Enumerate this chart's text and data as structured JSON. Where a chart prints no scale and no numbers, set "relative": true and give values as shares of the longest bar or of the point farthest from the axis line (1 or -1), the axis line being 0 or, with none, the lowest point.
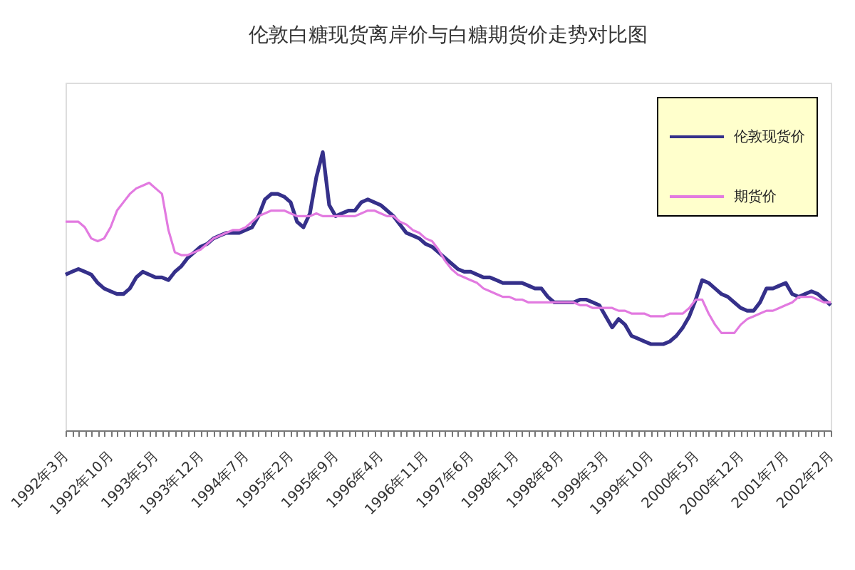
{
  "chart_data": {
    "type": "line",
    "title": "伦敦白糖现货离岸价与白糖期货价走势对比图",
    "relative": true,
    "legend": "top right",
    "categories": [
      "1992年3月",
      null,
      null,
      null,
      null,
      null,
      null,
      "1992年10月",
      null,
      null,
      null,
      null,
      null,
      null,
      "1993年5月",
      null,
      null,
      null,
      null,
      null,
      null,
      "1993年12月",
      null,
      null,
      null,
      null,
      null,
      null,
      "1994年7月",
      null,
      null,
      null,
      null,
      null,
      null,
      "1995年2月",
      null,
      null,
      null,
      null,
      null,
      null,
      "1995年9月",
      null,
      null,
      null,
      null,
      null,
      null,
      "1996年4月",
      null,
      null,
      null,
      null,
      null,
      null,
      "1996年11月",
      null,
      null,
      null,
      null,
      null,
      null,
      "1997年6月",
      null,
      null,
      null,
      null,
      null,
      null,
      "1998年1月",
      null,
      null,
      null,
      null,
      null,
      null,
      "1998年8月",
      null,
      null,
      null,
      null,
      null,
      null,
      "1999年3月",
      null,
      null,
      null,
      null,
      null,
      null,
      "1999年10月",
      null,
      null,
      null,
      null,
      null,
      null,
      "2000年5月",
      null,
      null,
      null,
      null,
      null,
      null,
      "2000年12月",
      null,
      null,
      null,
      null,
      null,
      null,
      "2001年7月",
      null,
      null,
      null,
      null,
      null,
      null,
      "2002年2月"
    ],
    "series": [
      {
        "name": "伦敦现货价",
        "color": "#35308a",
        "values": [
          0.56,
          0.57,
          0.58,
          0.57,
          0.56,
          0.53,
          0.51,
          0.5,
          0.49,
          0.49,
          0.51,
          0.55,
          0.57,
          0.56,
          0.55,
          0.55,
          0.54,
          0.57,
          0.59,
          0.62,
          0.64,
          0.66,
          0.67,
          0.69,
          0.7,
          0.71,
          0.71,
          0.71,
          0.72,
          0.73,
          0.77,
          0.83,
          0.85,
          0.85,
          0.84,
          0.82,
          0.75,
          0.73,
          0.78,
          0.91,
          1,
          0.81,
          0.77,
          0.78,
          0.79,
          0.79,
          0.82,
          0.83,
          0.82,
          0.81,
          0.79,
          0.77,
          0.74,
          0.71,
          0.7,
          0.69,
          0.67,
          0.66,
          0.64,
          0.62,
          0.6,
          0.58,
          0.57,
          0.57,
          0.56,
          0.55,
          0.55,
          0.54,
          0.53,
          0.53,
          0.53,
          0.53,
          0.52,
          0.51,
          0.51,
          0.48,
          0.46,
          0.46,
          0.46,
          0.46,
          0.47,
          0.47,
          0.46,
          0.45,
          0.41,
          0.37,
          0.4,
          0.38,
          0.34,
          0.33,
          0.32,
          0.31,
          0.31,
          0.31,
          0.32,
          0.34,
          0.37,
          0.41,
          0.47,
          0.54,
          0.53,
          0.51,
          0.49,
          0.48,
          0.46,
          0.44,
          0.43,
          0.43,
          0.46,
          0.51,
          0.51,
          0.52,
          0.53,
          0.49,
          0.48,
          0.49,
          0.5,
          0.49,
          0.47,
          0.45
        ]
      },
      {
        "name": "期货价",
        "color": "#e27ae0",
        "values": [
          0.75,
          0.75,
          0.75,
          0.73,
          0.69,
          0.68,
          0.69,
          0.73,
          0.79,
          0.82,
          0.85,
          0.87,
          0.88,
          0.89,
          0.87,
          0.85,
          0.72,
          0.64,
          0.63,
          0.63,
          0.64,
          0.65,
          0.67,
          0.69,
          0.7,
          0.71,
          0.72,
          0.72,
          0.73,
          0.75,
          0.77,
          0.78,
          0.79,
          0.79,
          0.79,
          0.78,
          0.77,
          0.77,
          0.77,
          0.78,
          0.77,
          0.77,
          0.77,
          0.77,
          0.77,
          0.77,
          0.78,
          0.79,
          0.79,
          0.78,
          0.77,
          0.77,
          0.75,
          0.74,
          0.72,
          0.71,
          0.69,
          0.68,
          0.65,
          0.61,
          0.58,
          0.56,
          0.55,
          0.54,
          0.53,
          0.51,
          0.5,
          0.49,
          0.48,
          0.48,
          0.47,
          0.47,
          0.46,
          0.46,
          0.46,
          0.46,
          0.46,
          0.46,
          0.46,
          0.46,
          0.45,
          0.45,
          0.44,
          0.44,
          0.44,
          0.44,
          0.43,
          0.43,
          0.42,
          0.42,
          0.42,
          0.41,
          0.41,
          0.41,
          0.42,
          0.42,
          0.42,
          0.44,
          0.47,
          0.47,
          0.42,
          0.38,
          0.35,
          0.35,
          0.35,
          0.38,
          0.4,
          0.41,
          0.42,
          0.43,
          0.43,
          0.44,
          0.45,
          0.46,
          0.48,
          0.48,
          0.48,
          0.47,
          0.46,
          0.46
        ]
      }
    ]
  }
}
